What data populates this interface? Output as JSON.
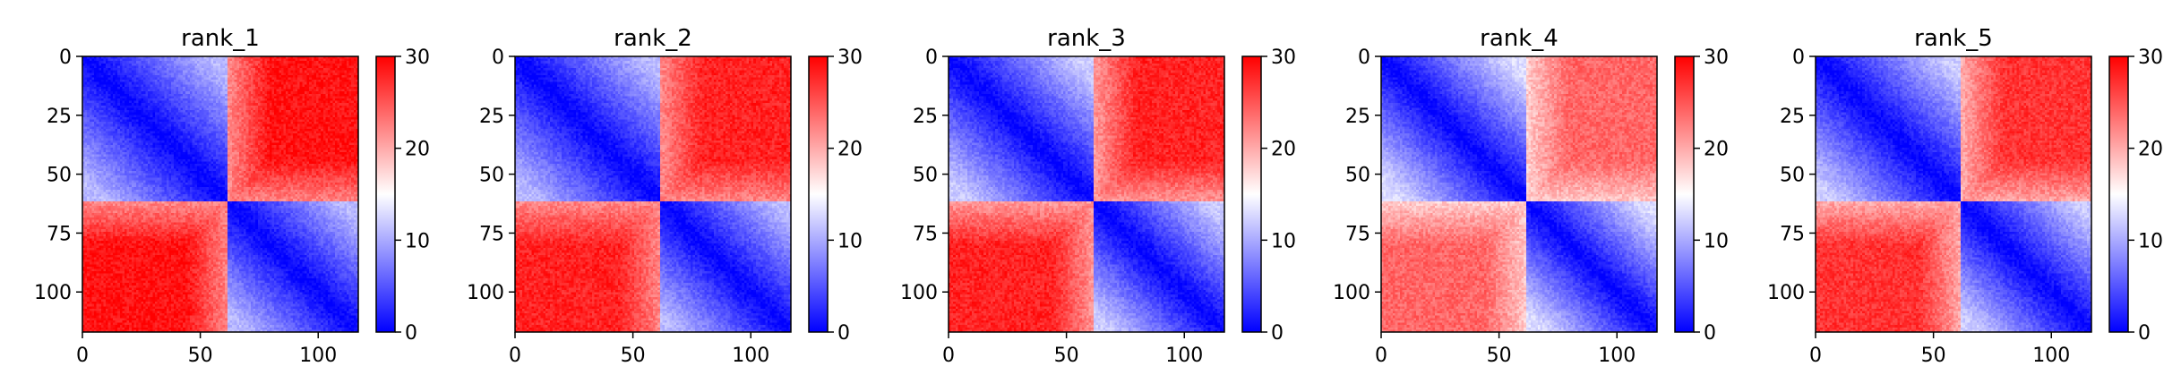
{
  "figure": {
    "colormap": {
      "low": "#0000ff",
      "mid": "#ffffff",
      "high": "#ff0000"
    },
    "colorbar": {
      "min": 0,
      "max": 30,
      "ticks": [
        0,
        10,
        20,
        30
      ]
    }
  },
  "chart_data": [
    {
      "type": "heatmap",
      "title": "rank_1",
      "n": 118,
      "split": 62,
      "xlim": [
        0,
        117
      ],
      "ylim": [
        117,
        0
      ],
      "xticks": [
        0,
        50,
        100
      ],
      "yticks": [
        0,
        25,
        50,
        75,
        100
      ],
      "value_range": [
        0,
        30
      ],
      "within_block_range": [
        0,
        11
      ],
      "between_block_range": [
        22,
        29
      ]
    },
    {
      "type": "heatmap",
      "title": "rank_2",
      "n": 118,
      "split": 62,
      "xlim": [
        0,
        117
      ],
      "ylim": [
        117,
        0
      ],
      "xticks": [
        0,
        50,
        100
      ],
      "yticks": [
        0,
        25,
        50,
        75,
        100
      ],
      "value_range": [
        0,
        30
      ],
      "within_block_range": [
        0,
        11
      ],
      "between_block_range": [
        22,
        28
      ]
    },
    {
      "type": "heatmap",
      "title": "rank_3",
      "n": 118,
      "split": 62,
      "xlim": [
        0,
        117
      ],
      "ylim": [
        117,
        0
      ],
      "xticks": [
        0,
        50,
        100
      ],
      "yticks": [
        0,
        25,
        50,
        75,
        100
      ],
      "value_range": [
        0,
        30
      ],
      "within_block_range": [
        0,
        12
      ],
      "between_block_range": [
        21,
        28
      ]
    },
    {
      "type": "heatmap",
      "title": "rank_4",
      "n": 118,
      "split": 62,
      "xlim": [
        0,
        117
      ],
      "ylim": [
        117,
        0
      ],
      "xticks": [
        0,
        50,
        100
      ],
      "yticks": [
        0,
        25,
        50,
        75,
        100
      ],
      "value_range": [
        0,
        30
      ],
      "within_block_range": [
        0,
        13
      ],
      "between_block_range": [
        18,
        24
      ]
    },
    {
      "type": "heatmap",
      "title": "rank_5",
      "n": 118,
      "split": 62,
      "xlim": [
        0,
        117
      ],
      "ylim": [
        117,
        0
      ],
      "xticks": [
        0,
        50,
        100
      ],
      "yticks": [
        0,
        25,
        50,
        75,
        100
      ],
      "value_range": [
        0,
        30
      ],
      "within_block_range": [
        0,
        12
      ],
      "between_block_range": [
        20,
        27
      ]
    }
  ]
}
